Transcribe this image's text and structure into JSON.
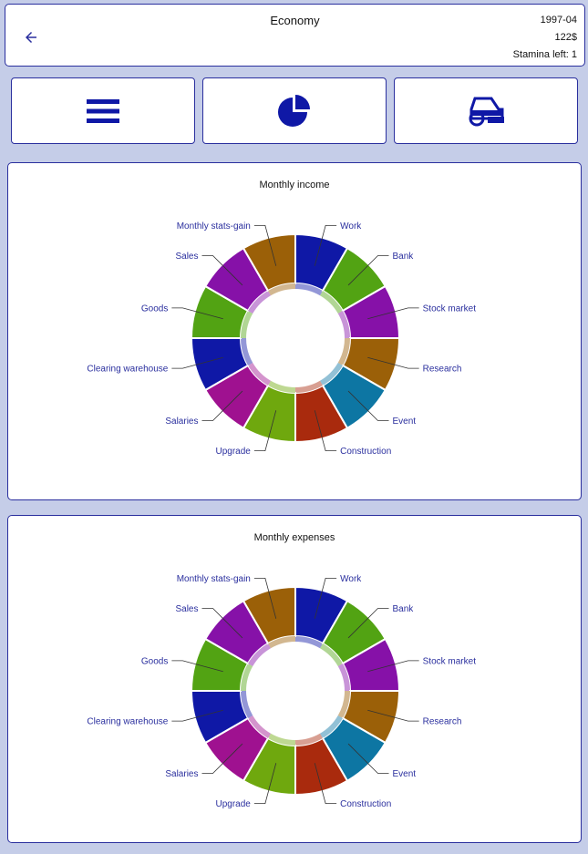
{
  "header": {
    "title": "Economy",
    "date": "1997-04",
    "money": "122$",
    "stamina": "Stamina left: 1",
    "back_icon": "arrow-left-icon"
  },
  "tabs": [
    {
      "name": "menu",
      "icon": "hamburger-menu-icon"
    },
    {
      "name": "statistics",
      "icon": "pie-chart-icon"
    },
    {
      "name": "vehicle",
      "icon": "car-icon"
    }
  ],
  "colors": {
    "accent": "#2a2f9e",
    "background": "#c5cde8",
    "slices": [
      "#0f18a6",
      "#52a313",
      "#8611a8",
      "#9b6008",
      "#0d76a3",
      "#a92a0d",
      "#6fa80e",
      "#9f1190",
      "#0f18a6",
      "#52a313",
      "#8611a8",
      "#9b6008"
    ]
  },
  "chart_data": [
    {
      "type": "pie",
      "title": "Monthly income",
      "categories": [
        "Work",
        "Bank",
        "Stock market",
        "Research",
        "Event",
        "Construction",
        "Upgrade",
        "Salaries",
        "Clearing warehouse",
        "Goods",
        "Sales",
        "Monthly stats-gain"
      ],
      "values": [
        1,
        1,
        1,
        1,
        1,
        1,
        1,
        1,
        1,
        1,
        1,
        1
      ]
    },
    {
      "type": "pie",
      "title": "Monthly expenses",
      "categories": [
        "Work",
        "Bank",
        "Stock market",
        "Research",
        "Event",
        "Construction",
        "Upgrade",
        "Salaries",
        "Clearing warehouse",
        "Goods",
        "Sales",
        "Monthly stats-gain"
      ],
      "values": [
        1,
        1,
        1,
        1,
        1,
        1,
        1,
        1,
        1,
        1,
        1,
        1
      ]
    }
  ]
}
